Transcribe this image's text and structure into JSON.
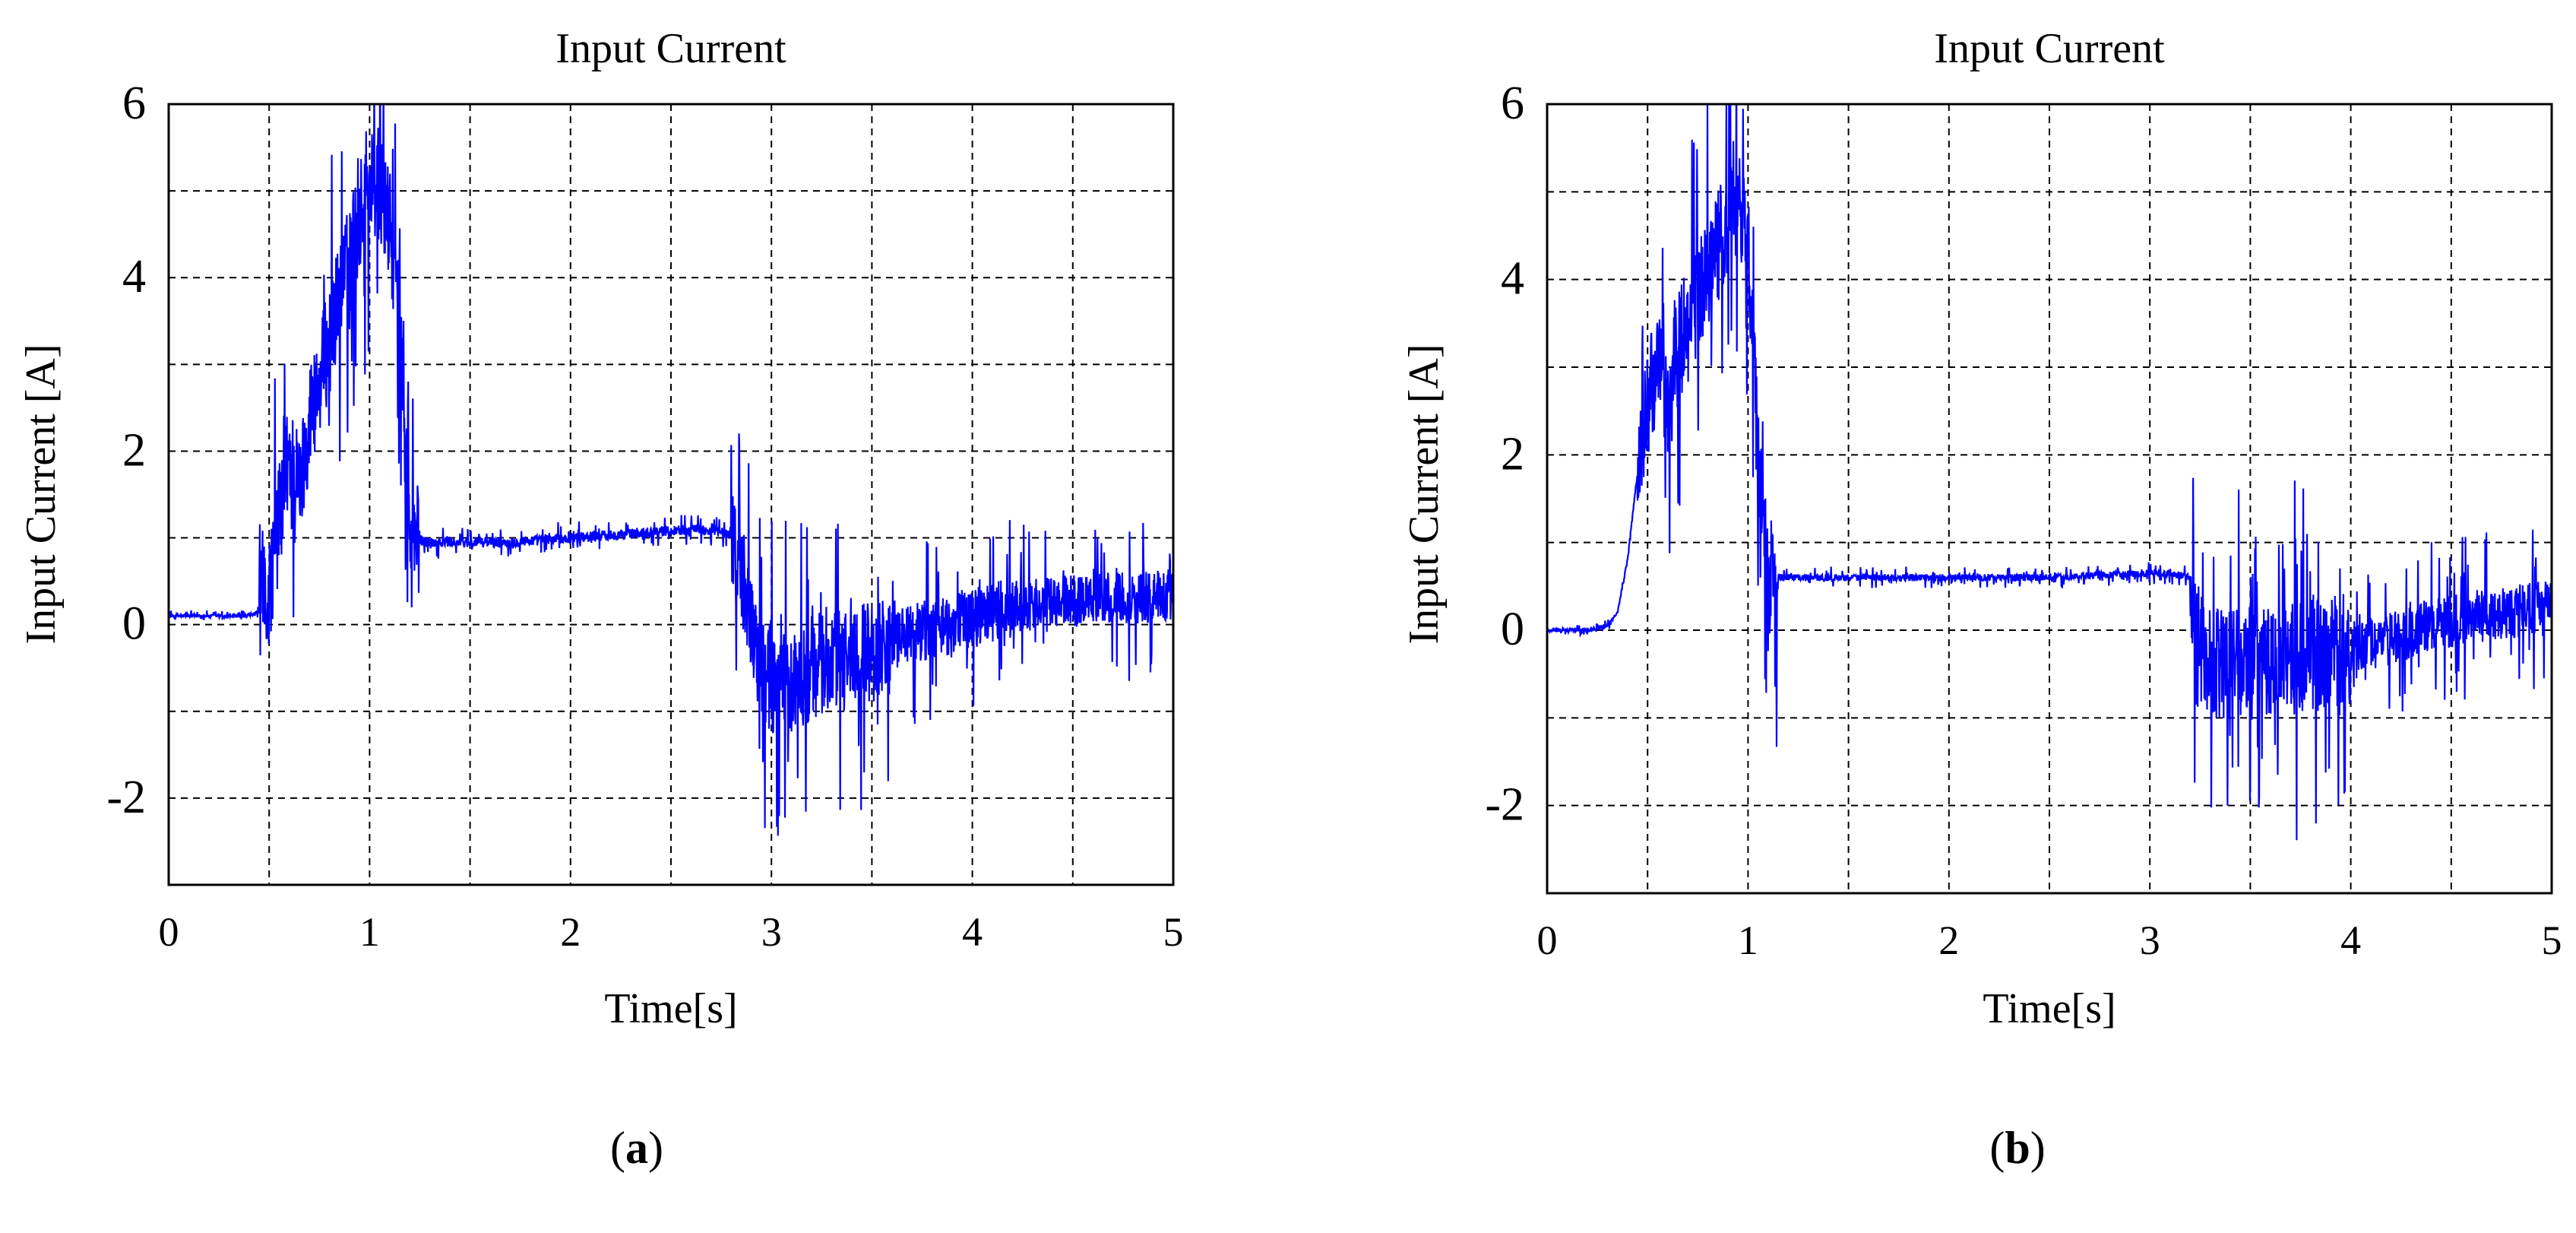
{
  "figure": {
    "panels": [
      {
        "caption": "(a)",
        "caption_letter": "a"
      },
      {
        "caption": "(b)",
        "caption_letter": "b"
      }
    ]
  },
  "chart_data": [
    {
      "type": "line",
      "title": "Input Current",
      "xlabel": "Time[s]",
      "ylabel": "Input Current [A]",
      "xlim": [
        0,
        5
      ],
      "ylim": [
        -3,
        6
      ],
      "xticks": [
        "0",
        "1",
        "2",
        "3",
        "4",
        "5"
      ],
      "yticks": [
        "-2",
        "0",
        "2",
        "4",
        "6"
      ],
      "grid": true,
      "grid_step_x": 0.5,
      "grid_step_y": 1,
      "line_color": "#0000ff",
      "series": [
        {
          "x": [
            0,
            0.1,
            0.2,
            0.3,
            0.4,
            0.45,
            0.5,
            0.55,
            0.6,
            0.65,
            0.7,
            0.75,
            0.8,
            0.85,
            0.9,
            0.95,
            1.0,
            1.05,
            1.1,
            1.15,
            1.2,
            1.3,
            1.5,
            1.7,
            2.0,
            2.3,
            2.6,
            2.8,
            2.85,
            2.9,
            2.95,
            3.0,
            3.1,
            3.2,
            3.3,
            3.5,
            3.7,
            3.9,
            4.0,
            4.2,
            4.4,
            4.6,
            4.8,
            5.0
          ],
          "y": [
            0.1,
            0.1,
            0.1,
            0.1,
            0.1,
            0.15,
            0.4,
            1.2,
            2.0,
            1.5,
            2.4,
            2.8,
            3.3,
            3.8,
            4.2,
            4.7,
            5.1,
            5.0,
            4.6,
            3.5,
            1.0,
            0.95,
            0.95,
            0.95,
            1.0,
            1.05,
            1.1,
            1.05,
            0.6,
            0.0,
            -0.5,
            -0.7,
            -0.7,
            -0.5,
            -0.4,
            -0.3,
            -0.1,
            0.0,
            0.1,
            0.2,
            0.25,
            0.3,
            0.3,
            0.35
          ]
        }
      ]
    },
    {
      "type": "line",
      "title": "Input Current",
      "xlabel": "Time[s]",
      "ylabel": "Input Current [A]",
      "xlim": [
        0,
        5
      ],
      "ylim": [
        -3,
        6
      ],
      "xticks": [
        "0",
        "1",
        "2",
        "3",
        "4",
        "5"
      ],
      "yticks": [
        "-2",
        "0",
        "2",
        "4",
        "6"
      ],
      "grid": true,
      "grid_step_x": 0.5,
      "grid_step_y": 1,
      "line_color": "#0000ff",
      "series": [
        {
          "x": [
            0,
            0.1,
            0.2,
            0.3,
            0.35,
            0.4,
            0.45,
            0.5,
            0.55,
            0.6,
            0.65,
            0.7,
            0.75,
            0.8,
            0.85,
            0.9,
            0.95,
            1.0,
            1.05,
            1.1,
            1.2,
            1.5,
            2.0,
            2.5,
            3.0,
            3.1,
            3.2,
            3.25,
            3.3,
            3.4,
            3.6,
            3.8,
            4.0,
            4.2,
            4.4,
            4.6,
            4.8,
            5.0
          ],
          "y": [
            0.0,
            0.0,
            0.0,
            0.05,
            0.2,
            0.8,
            1.8,
            2.6,
            3.0,
            2.5,
            3.2,
            3.5,
            3.8,
            4.1,
            4.4,
            4.6,
            4.8,
            4.4,
            2.0,
            0.6,
            0.6,
            0.6,
            0.6,
            0.6,
            0.65,
            0.65,
            0.6,
            -0.2,
            -0.4,
            -0.4,
            -0.35,
            -0.3,
            -0.2,
            -0.1,
            0.05,
            0.15,
            0.2,
            0.3
          ]
        }
      ]
    }
  ]
}
